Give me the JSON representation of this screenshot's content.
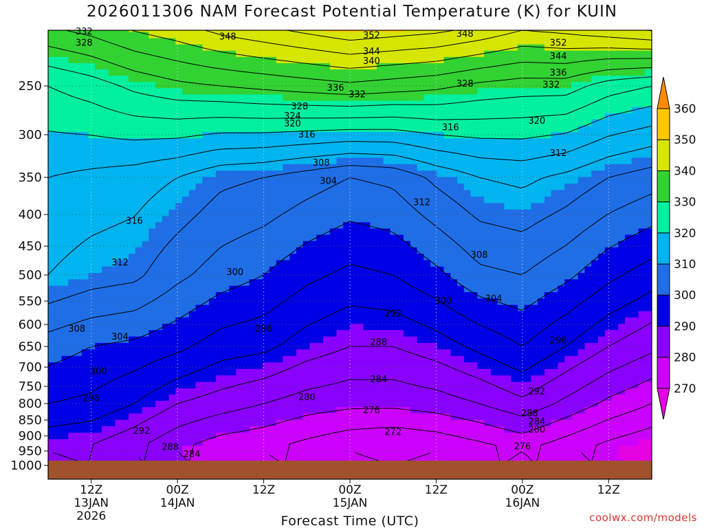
{
  "title": "2026011306 NAM Forecast Potential Temperature (K) for KUIN",
  "credit": "coolwx.com/models",
  "chart_data": {
    "type": "heatmap",
    "title": "2026011306 NAM Forecast Potential Temperature (K) for KUIN",
    "xlabel": "Forecast Time (UTC)",
    "ylabel": "",
    "y_scale": "log-pressure",
    "y_range_hPa": [
      200,
      1000
    ],
    "y_ticks": [
      250,
      300,
      350,
      400,
      450,
      500,
      550,
      600,
      650,
      700,
      750,
      800,
      850,
      900,
      950,
      1000
    ],
    "x_ticks": [
      {
        "hour": 6,
        "lines": [
          "12Z",
          "13JAN",
          "2026"
        ]
      },
      {
        "hour": 18,
        "lines": [
          "00Z",
          "14JAN"
        ]
      },
      {
        "hour": 30,
        "lines": [
          "12Z"
        ]
      },
      {
        "hour": 42,
        "lines": [
          "00Z",
          "15JAN"
        ]
      },
      {
        "hour": 54,
        "lines": [
          "12Z"
        ]
      },
      {
        "hour": 66,
        "lines": [
          "00Z",
          "16JAN"
        ]
      },
      {
        "hour": 78,
        "lines": [
          "12Z"
        ]
      }
    ],
    "x_range_hours": [
      0,
      84
    ],
    "grid": true,
    "colorbar": {
      "labels": [
        270,
        280,
        290,
        300,
        310,
        320,
        330,
        340,
        350,
        360
      ],
      "bands": [
        {
          "from": 260,
          "to": 270,
          "color": "#e600e6"
        },
        {
          "from": 270,
          "to": 280,
          "color": "#cc00ff"
        },
        {
          "from": 280,
          "to": 290,
          "color": "#8a00ff"
        },
        {
          "from": 290,
          "to": 300,
          "color": "#0000e6"
        },
        {
          "from": 300,
          "to": 310,
          "color": "#1f6ee6"
        },
        {
          "from": 310,
          "to": 320,
          "color": "#00b4f0"
        },
        {
          "from": 320,
          "to": 330,
          "color": "#00f0a0"
        },
        {
          "from": 330,
          "to": 340,
          "color": "#32d232"
        },
        {
          "from": 340,
          "to": 350,
          "color": "#d7e600"
        },
        {
          "from": 350,
          "to": 360,
          "color": "#ffc800"
        },
        {
          "from": 360,
          "to": 370,
          "color": "#ff8c00"
        }
      ]
    },
    "ground_color": "#a0522d",
    "profiles": [
      {
        "hour": 0,
        "levels": [
          [
            950,
            288
          ],
          [
            800,
            296
          ],
          [
            650,
            302
          ],
          [
            500,
            312
          ],
          [
            350,
            316
          ],
          [
            250,
            324
          ],
          [
            200,
            336
          ]
        ]
      },
      {
        "hour": 6,
        "levels": [
          [
            950,
            287
          ],
          [
            800,
            295
          ],
          [
            650,
            300
          ],
          [
            500,
            310
          ],
          [
            350,
            315
          ],
          [
            250,
            326
          ],
          [
            200,
            338
          ]
        ]
      },
      {
        "hour": 12,
        "levels": [
          [
            950,
            284
          ],
          [
            800,
            292
          ],
          [
            650,
            299
          ],
          [
            500,
            309
          ],
          [
            350,
            314
          ],
          [
            250,
            329
          ],
          [
            200,
            341
          ]
        ]
      },
      {
        "hour": 18,
        "levels": [
          [
            950,
            280
          ],
          [
            800,
            288
          ],
          [
            650,
            297
          ],
          [
            500,
            305
          ],
          [
            350,
            312
          ],
          [
            250,
            331
          ],
          [
            200,
            343
          ]
        ]
      },
      {
        "hour": 24,
        "levels": [
          [
            950,
            277
          ],
          [
            800,
            286
          ],
          [
            650,
            294
          ],
          [
            500,
            302
          ],
          [
            350,
            309
          ],
          [
            250,
            332
          ],
          [
            200,
            346
          ]
        ]
      },
      {
        "hour": 30,
        "levels": [
          [
            950,
            276
          ],
          [
            800,
            284
          ],
          [
            650,
            293
          ],
          [
            500,
            300
          ],
          [
            350,
            308
          ],
          [
            250,
            333
          ],
          [
            200,
            348
          ]
        ]
      },
      {
        "hour": 36,
        "levels": [
          [
            950,
            274
          ],
          [
            800,
            282
          ],
          [
            650,
            290
          ],
          [
            500,
            297
          ],
          [
            350,
            306
          ],
          [
            250,
            334
          ],
          [
            200,
            350
          ]
        ]
      },
      {
        "hour": 42,
        "levels": [
          [
            950,
            272
          ],
          [
            800,
            281
          ],
          [
            650,
            288
          ],
          [
            500,
            295
          ],
          [
            350,
            304
          ],
          [
            250,
            335
          ],
          [
            200,
            352
          ]
        ]
      },
      {
        "hour": 48,
        "levels": [
          [
            950,
            271
          ],
          [
            800,
            281
          ],
          [
            650,
            288
          ],
          [
            500,
            296
          ],
          [
            350,
            305
          ],
          [
            250,
            334
          ],
          [
            200,
            351
          ]
        ]
      },
      {
        "hour": 54,
        "levels": [
          [
            950,
            272
          ],
          [
            800,
            282
          ],
          [
            650,
            290
          ],
          [
            500,
            299
          ],
          [
            350,
            309
          ],
          [
            250,
            333
          ],
          [
            200,
            350
          ]
        ]
      },
      {
        "hour": 60,
        "levels": [
          [
            950,
            274
          ],
          [
            800,
            284
          ],
          [
            650,
            293
          ],
          [
            500,
            303
          ],
          [
            350,
            312
          ],
          [
            250,
            331
          ],
          [
            200,
            348
          ]
        ]
      },
      {
        "hour": 66,
        "levels": [
          [
            950,
            276
          ],
          [
            800,
            287
          ],
          [
            650,
            296
          ],
          [
            500,
            304
          ],
          [
            350,
            313
          ],
          [
            250,
            330
          ],
          [
            200,
            345
          ]
        ]
      },
      {
        "hour": 72,
        "levels": [
          [
            950,
            273
          ],
          [
            800,
            283
          ],
          [
            650,
            292
          ],
          [
            500,
            301
          ],
          [
            350,
            311
          ],
          [
            250,
            330
          ],
          [
            200,
            346
          ]
        ]
      },
      {
        "hour": 78,
        "levels": [
          [
            950,
            270
          ],
          [
            800,
            279
          ],
          [
            650,
            288
          ],
          [
            500,
            297
          ],
          [
            350,
            308
          ],
          [
            250,
            326
          ],
          [
            200,
            348
          ]
        ]
      },
      {
        "hour": 84,
        "levels": [
          [
            950,
            268
          ],
          [
            800,
            276
          ],
          [
            650,
            285
          ],
          [
            500,
            294
          ],
          [
            350,
            306
          ],
          [
            250,
            324
          ],
          [
            200,
            350
          ]
        ]
      }
    ],
    "contour_labels": [
      {
        "text": "332",
        "hour": 5,
        "p": 204
      },
      {
        "text": "328",
        "hour": 5,
        "p": 213
      },
      {
        "text": "348",
        "hour": 25,
        "p": 208
      },
      {
        "text": "352",
        "hour": 45,
        "p": 207
      },
      {
        "text": "348",
        "hour": 58,
        "p": 206
      },
      {
        "text": "352",
        "hour": 71,
        "p": 213
      },
      {
        "text": "344",
        "hour": 45,
        "p": 220
      },
      {
        "text": "340",
        "hour": 45,
        "p": 228
      },
      {
        "text": "344",
        "hour": 71,
        "p": 224
      },
      {
        "text": "336",
        "hour": 71,
        "p": 238
      },
      {
        "text": "336",
        "hour": 40,
        "p": 252
      },
      {
        "text": "332",
        "hour": 43,
        "p": 258
      },
      {
        "text": "328",
        "hour": 58,
        "p": 248
      },
      {
        "text": "332",
        "hour": 70,
        "p": 249
      },
      {
        "text": "328",
        "hour": 35,
        "p": 270
      },
      {
        "text": "324",
        "hour": 34,
        "p": 280
      },
      {
        "text": "320",
        "hour": 34,
        "p": 288
      },
      {
        "text": "316",
        "hour": 36,
        "p": 300
      },
      {
        "text": "316",
        "hour": 56,
        "p": 292
      },
      {
        "text": "320",
        "hour": 68,
        "p": 285
      },
      {
        "text": "312",
        "hour": 71,
        "p": 321
      },
      {
        "text": "308",
        "hour": 38,
        "p": 332
      },
      {
        "text": "304",
        "hour": 39,
        "p": 355
      },
      {
        "text": "312",
        "hour": 52,
        "p": 383
      },
      {
        "text": "316",
        "hour": 12,
        "p": 410
      },
      {
        "text": "312",
        "hour": 10,
        "p": 478
      },
      {
        "text": "308",
        "hour": 60,
        "p": 465
      },
      {
        "text": "300",
        "hour": 26,
        "p": 495
      },
      {
        "text": "304",
        "hour": 62,
        "p": 545
      },
      {
        "text": "300",
        "hour": 55,
        "p": 550
      },
      {
        "text": "292",
        "hour": 48,
        "p": 577
      },
      {
        "text": "308",
        "hour": 4,
        "p": 610
      },
      {
        "text": "304",
        "hour": 10,
        "p": 628
      },
      {
        "text": "296",
        "hour": 30,
        "p": 610
      },
      {
        "text": "288",
        "hour": 46,
        "p": 640
      },
      {
        "text": "296",
        "hour": 71,
        "p": 636
      },
      {
        "text": "300",
        "hour": 7,
        "p": 711
      },
      {
        "text": "284",
        "hour": 46,
        "p": 732
      },
      {
        "text": "292",
        "hour": 68,
        "p": 765
      },
      {
        "text": "296",
        "hour": 6,
        "p": 785
      },
      {
        "text": "280",
        "hour": 36,
        "p": 782
      },
      {
        "text": "276",
        "hour": 45,
        "p": 820
      },
      {
        "text": "288",
        "hour": 67,
        "p": 830
      },
      {
        "text": "284",
        "hour": 68,
        "p": 855
      },
      {
        "text": "280",
        "hour": 68,
        "p": 880
      },
      {
        "text": "272",
        "hour": 48,
        "p": 888
      },
      {
        "text": "292",
        "hour": 13,
        "p": 885
      },
      {
        "text": "288",
        "hour": 17,
        "p": 937
      },
      {
        "text": "284",
        "hour": 20,
        "p": 962
      },
      {
        "text": "276",
        "hour": 66,
        "p": 935
      }
    ]
  }
}
